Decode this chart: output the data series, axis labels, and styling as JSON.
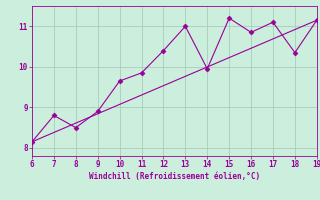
{
  "xlabel": "Windchill (Refroidissement éolien,°C)",
  "x_data": [
    6,
    7,
    8,
    9,
    10,
    11,
    12,
    13,
    14,
    15,
    16,
    17,
    18,
    19
  ],
  "y_data": [
    8.15,
    8.8,
    8.5,
    8.9,
    9.65,
    9.85,
    10.4,
    11.0,
    9.95,
    11.2,
    10.85,
    11.1,
    10.35,
    11.15
  ],
  "trend_x": [
    6,
    19
  ],
  "trend_y": [
    8.15,
    11.15
  ],
  "line_color": "#990099",
  "marker": "D",
  "marker_size": 2.5,
  "background_color": "#cceedd",
  "grid_color": "#aaccbb",
  "tick_color": "#990099",
  "label_color": "#990099",
  "xlim": [
    6,
    19
  ],
  "ylim": [
    7.8,
    11.5
  ],
  "yticks": [
    8,
    9,
    10,
    11
  ],
  "xticks": [
    6,
    7,
    8,
    9,
    10,
    11,
    12,
    13,
    14,
    15,
    16,
    17,
    18,
    19
  ]
}
